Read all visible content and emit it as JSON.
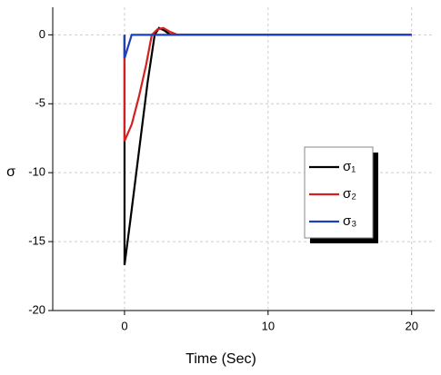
{
  "chart_data": {
    "type": "line",
    "x_label": "Time (Sec)",
    "y_label": "σ",
    "xlim": [
      -5,
      21.6
    ],
    "ylim": [
      -20,
      2
    ],
    "xticks": [
      0,
      10,
      20
    ],
    "yticks": [
      -20,
      -15,
      -10,
      -5,
      0
    ],
    "grid": true,
    "legend": "right",
    "series": [
      {
        "name": "σ₁",
        "color": "#000000",
        "x": [
          0,
          0,
          0.4,
          1.0,
          1.6,
          2.1,
          2.4,
          2.8,
          3.2,
          20
        ],
        "values": [
          0,
          -16.7,
          -13.5,
          -8.5,
          -3.5,
          0,
          0.5,
          0.3,
          0,
          0
        ]
      },
      {
        "name": "σ₂",
        "color": "#d42020",
        "x": [
          0,
          0,
          0.5,
          1.0,
          1.5,
          1.9,
          2.3,
          2.7,
          3.2,
          3.7,
          20
        ],
        "values": [
          0,
          -7.7,
          -6.5,
          -4.5,
          -2.2,
          0,
          0.4,
          0.5,
          0.2,
          0,
          0
        ]
      },
      {
        "name": "σ₃",
        "color": "#1f3fb4",
        "x": [
          0,
          0,
          0.5,
          20
        ],
        "values": [
          0,
          -1.7,
          0,
          0
        ]
      }
    ]
  }
}
